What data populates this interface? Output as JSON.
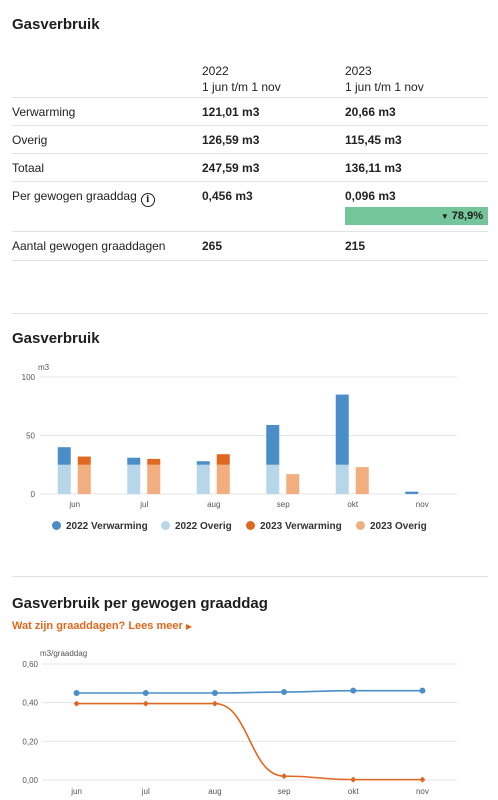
{
  "section1": {
    "title": "Gasverbruik",
    "col_2022": {
      "year": "2022",
      "period": "1 jun t/m 1 nov"
    },
    "col_2023": {
      "year": "2023",
      "period": "1 jun t/m 1 nov"
    },
    "rows": [
      {
        "label": "Verwarming",
        "v2022": "121,01 m3",
        "v2023": "20,66 m3"
      },
      {
        "label": "Overig",
        "v2022": "126,59 m3",
        "v2023": "115,45 m3"
      },
      {
        "label": "Totaal",
        "v2022": "247,59 m3",
        "v2023": "136,11 m3"
      },
      {
        "label": "Per gewogen graaddag",
        "info_icon": "info-icon",
        "v2022": "0,456 m3",
        "v2023": "0,096 m3"
      },
      {
        "label": "Aantal gewogen graaddagen",
        "v2022": "265",
        "v2023": "215"
      }
    ],
    "badge": {
      "arrow": "▼",
      "value": "78,9%",
      "color": "#74c69a"
    }
  },
  "section2": {
    "title": "Gasverbruik"
  },
  "section3": {
    "title": "Gasverbruik per gewogen graaddag",
    "link": "Wat zijn graaddagen? Lees meer",
    "link_icon": "caret-right-icon"
  },
  "colors": {
    "v2022_verwarming": "#4a8ec7",
    "v2022_overig": "#b7d6ea",
    "v2023_verwarming": "#e0671f",
    "v2023_overig": "#f2ae7f",
    "line_2022": "#4a8ec7",
    "line_2023": "#e0671f"
  },
  "chart_data": [
    {
      "type": "bar",
      "title": "",
      "ylabel": "m3",
      "ylim": [
        0,
        100
      ],
      "yticks": [
        0,
        50,
        100
      ],
      "categories": [
        "jun",
        "jul",
        "aug",
        "sep",
        "okt",
        "nov"
      ],
      "stacked": true,
      "series": [
        {
          "name": "2022 Verwarming",
          "group": "2022",
          "values": [
            15,
            6,
            3,
            34,
            60,
            2
          ]
        },
        {
          "name": "2022 Overig",
          "group": "2022",
          "values": [
            25,
            25,
            25,
            25,
            25,
            0
          ]
        },
        {
          "name": "2023 Verwarming",
          "group": "2023",
          "values": [
            7,
            5,
            9,
            0,
            0,
            0
          ]
        },
        {
          "name": "2023 Overig",
          "group": "2023",
          "values": [
            25,
            25,
            25,
            17,
            23,
            0
          ]
        }
      ],
      "legend": "bottom",
      "grid": true
    },
    {
      "type": "line",
      "title": "",
      "ylabel": "m3/graaddag",
      "ylim": [
        0,
        0.6
      ],
      "yticks": [
        "0,00",
        "0,20",
        "0,40",
        "0,60"
      ],
      "categories": [
        "jun",
        "jul",
        "aug",
        "sep",
        "okt",
        "nov"
      ],
      "series": [
        {
          "values": [
            0.45,
            0.45,
            0.45,
            0.455,
            0.462,
            0.462
          ]
        },
        {
          "values": [
            0.395,
            0.395,
            0.395,
            0.02,
            0.002,
            0.002
          ]
        }
      ],
      "grid": true
    }
  ],
  "legend_labels": [
    "2022 Verwarming",
    "2022 Overig",
    "2023 Verwarming",
    "2023 Overig"
  ]
}
